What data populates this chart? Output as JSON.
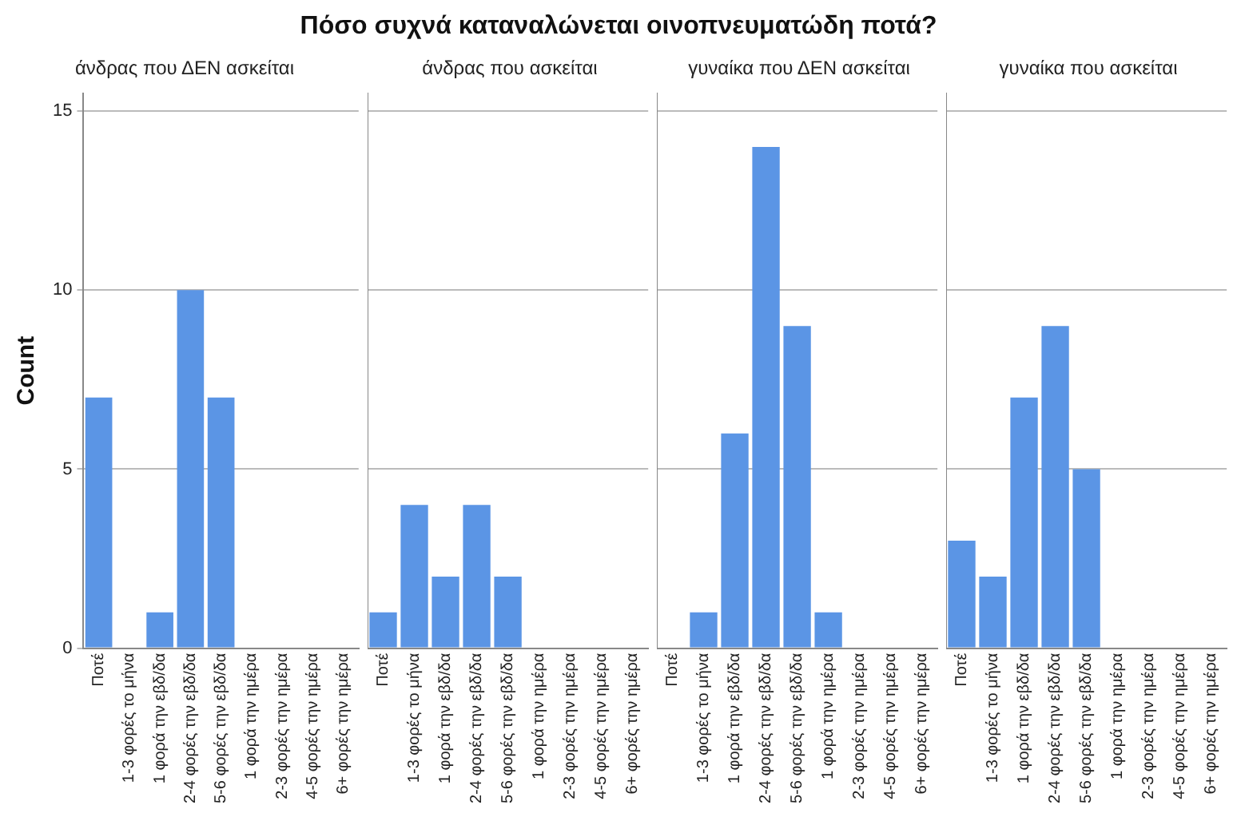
{
  "chart_data": [
    {
      "type": "bar",
      "title": "άνδρας που ΔΕΝ ασκείται",
      "ylabel": "Count",
      "annotations": [
        "Πόσο συχνά καταναλώνεται οινοπνευματώδη ποτά?"
      ],
      "categories": [
        "Ποτέ",
        "1-3 φορές το μήνα",
        "1 φορά την εβδ/δα",
        "2-4 φορές την εβδ/δα",
        "5-6 φορές την εβδ/δα",
        "1 φορά την ημέρα",
        "2-3 φορές την ημέρα",
        "4-5 φορές την ημέρα",
        "6+ φορές την ημέρα"
      ],
      "values": [
        7,
        0,
        1,
        10,
        7,
        0,
        0,
        0,
        0
      ],
      "color": "#5b95e5",
      "ylim": [
        0,
        15.5
      ],
      "yticks": [
        0,
        5,
        10,
        15
      ],
      "grid": "y",
      "legend": false
    },
    {
      "type": "bar",
      "title": "άνδρας που ασκείται",
      "categories": [
        "Ποτέ",
        "1-3 φορές το μήνα",
        "1 φορά την εβδ/δα",
        "2-4 φορές την εβδ/δα",
        "5-6 φορές την εβδ/δα",
        "1 φορά την ημέρα",
        "2-3 φορές την ημέρα",
        "4-5 φορές την ημέρα",
        "6+ φορές την ημέρα"
      ],
      "values": [
        1,
        4,
        2,
        4,
        2,
        0,
        0,
        0,
        0
      ],
      "color": "#5b95e5",
      "ylim": [
        0,
        15.5
      ],
      "yticks": [
        0,
        5,
        10,
        15
      ],
      "grid": "y",
      "legend": false,
      "tick_labels": "x"
    },
    {
      "type": "bar",
      "title": "γυναίκα που ΔΕΝ ασκείται",
      "categories": [
        "Ποτέ",
        "1-3 φορές το μήνα",
        "1 φορά την εβδ/δα",
        "2-4 φορές την εβδ/δα",
        "5-6 φορές την εβδ/δα",
        "1 φορά την ημέρα",
        "2-3 φορές την ημέρα",
        "4-5 φορές την ημέρα",
        "6+ φορές την ημέρα"
      ],
      "values": [
        0,
        1,
        6,
        14,
        9,
        1,
        0,
        0,
        0
      ],
      "color": "#5b95e5",
      "ylim": [
        0,
        15.5
      ],
      "yticks": [
        0,
        5,
        10,
        15
      ],
      "grid": "y",
      "legend": false,
      "tick_labels": "x"
    },
    {
      "type": "bar",
      "title": "γυναίκα που ασκείται",
      "categories": [
        "Ποτέ",
        "1-3 φορές το μήνα",
        "1 φορά την εβδ/δα",
        "2-4 φορές την εβδ/δα",
        "5-6 φορές την εβδ/δα",
        "1 φορά την ημέρα",
        "2-3 φορές την ημέρα",
        "4-5 φορές την ημέρα",
        "6+ φορές την ημέρα"
      ],
      "values": [
        3,
        2,
        7,
        9,
        5,
        0,
        0,
        0,
        0
      ],
      "color": "#5b95e5",
      "ylim": [
        0,
        15.5
      ],
      "yticks": [
        0,
        5,
        10,
        15
      ],
      "grid": "y",
      "legend": false,
      "tick_labels": "x"
    }
  ]
}
